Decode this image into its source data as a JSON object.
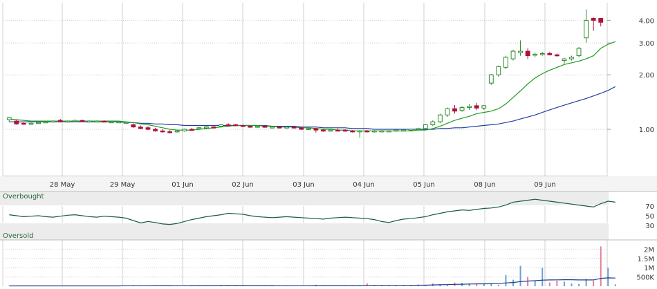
{
  "chart_data": {
    "type": "candlestick",
    "x_labels": [
      "28 May",
      "29 May",
      "01 Jun",
      "02 Jun",
      "03 Jun",
      "04 Jun",
      "05 Jun",
      "08 Jun",
      "09 Jun"
    ],
    "price": {
      "scale": "log",
      "ylim": [
        0.55,
        5.0
      ],
      "y_ticks": [
        {
          "value": 1.0,
          "label": "1.00"
        },
        {
          "value": 2.0,
          "label": "2.00"
        },
        {
          "value": 3.0,
          "label": "3.00"
        },
        {
          "value": 4.0,
          "label": "4.00"
        }
      ],
      "candles": [
        {
          "o": 1.13,
          "h": 1.17,
          "l": 1.1,
          "c": 1.16
        },
        {
          "o": 1.11,
          "h": 1.13,
          "l": 1.06,
          "c": 1.07
        },
        {
          "o": 1.08,
          "h": 1.09,
          "l": 1.06,
          "c": 1.07
        },
        {
          "o": 1.07,
          "h": 1.09,
          "l": 1.06,
          "c": 1.08
        },
        {
          "o": 1.08,
          "h": 1.1,
          "l": 1.07,
          "c": 1.09
        },
        {
          "o": 1.09,
          "h": 1.11,
          "l": 1.08,
          "c": 1.1
        },
        {
          "o": 1.1,
          "h": 1.12,
          "l": 1.09,
          "c": 1.11
        },
        {
          "o": 1.12,
          "h": 1.14,
          "l": 1.09,
          "c": 1.1
        },
        {
          "o": 1.1,
          "h": 1.12,
          "l": 1.09,
          "c": 1.11
        },
        {
          "o": 1.11,
          "h": 1.13,
          "l": 1.1,
          "c": 1.12
        },
        {
          "o": 1.12,
          "h": 1.13,
          "l": 1.1,
          "c": 1.11
        },
        {
          "o": 1.11,
          "h": 1.12,
          "l": 1.1,
          "c": 1.11
        },
        {
          "o": 1.11,
          "h": 1.12,
          "l": 1.1,
          "c": 1.11
        },
        {
          "o": 1.11,
          "h": 1.12,
          "l": 1.1,
          "c": 1.1
        },
        {
          "o": 1.1,
          "h": 1.11,
          "l": 1.09,
          "c": 1.1
        },
        {
          "o": 1.1,
          "h": 1.11,
          "l": 1.09,
          "c": 1.1
        },
        {
          "o": 1.09,
          "h": 1.1,
          "l": 1.08,
          "c": 1.09
        },
        {
          "o": 1.06,
          "h": 1.08,
          "l": 1.02,
          "c": 1.03
        },
        {
          "o": 1.03,
          "h": 1.05,
          "l": 1.0,
          "c": 1.01
        },
        {
          "o": 1.02,
          "h": 1.04,
          "l": 0.99,
          "c": 1.0
        },
        {
          "o": 1.0,
          "h": 1.02,
          "l": 0.97,
          "c": 0.98
        },
        {
          "o": 0.98,
          "h": 1.0,
          "l": 0.96,
          "c": 0.97
        },
        {
          "o": 0.97,
          "h": 0.99,
          "l": 0.95,
          "c": 0.96
        },
        {
          "o": 0.97,
          "h": 0.99,
          "l": 0.96,
          "c": 0.98
        },
        {
          "o": 0.98,
          "h": 1.01,
          "l": 0.97,
          "c": 1.0
        },
        {
          "o": 1.0,
          "h": 1.02,
          "l": 0.98,
          "c": 0.99
        },
        {
          "o": 1.01,
          "h": 1.03,
          "l": 0.99,
          "c": 1.02
        },
        {
          "o": 1.02,
          "h": 1.04,
          "l": 1.0,
          "c": 1.03
        },
        {
          "o": 1.03,
          "h": 1.04,
          "l": 1.01,
          "c": 1.02
        },
        {
          "o": 1.04,
          "h": 1.07,
          "l": 1.03,
          "c": 1.06
        },
        {
          "o": 1.06,
          "h": 1.08,
          "l": 1.04,
          "c": 1.05
        },
        {
          "o": 1.06,
          "h": 1.07,
          "l": 1.04,
          "c": 1.05
        },
        {
          "o": 1.05,
          "h": 1.06,
          "l": 1.03,
          "c": 1.04
        },
        {
          "o": 1.04,
          "h": 1.05,
          "l": 1.02,
          "c": 1.03
        },
        {
          "o": 1.03,
          "h": 1.05,
          "l": 1.02,
          "c": 1.04
        },
        {
          "o": 1.04,
          "h": 1.05,
          "l": 1.02,
          "c": 1.03
        },
        {
          "o": 1.03,
          "h": 1.04,
          "l": 1.02,
          "c": 1.03
        },
        {
          "o": 1.03,
          "h": 1.04,
          "l": 1.01,
          "c": 1.02
        },
        {
          "o": 1.02,
          "h": 1.04,
          "l": 1.01,
          "c": 1.03
        },
        {
          "o": 1.03,
          "h": 1.04,
          "l": 1.01,
          "c": 1.02
        },
        {
          "o": 1.02,
          "h": 1.03,
          "l": 0.99,
          "c": 1.0
        },
        {
          "o": 1.0,
          "h": 1.02,
          "l": 0.99,
          "c": 1.01
        },
        {
          "o": 1.01,
          "h": 1.02,
          "l": 0.96,
          "c": 0.99
        },
        {
          "o": 0.99,
          "h": 1.0,
          "l": 0.97,
          "c": 0.98
        },
        {
          "o": 0.98,
          "h": 1.0,
          "l": 0.97,
          "c": 0.99
        },
        {
          "o": 0.99,
          "h": 1.01,
          "l": 0.98,
          "c": 0.98
        },
        {
          "o": 0.99,
          "h": 1.0,
          "l": 0.97,
          "c": 0.98
        },
        {
          "o": 0.98,
          "h": 0.99,
          "l": 0.96,
          "c": 0.97
        },
        {
          "o": 0.97,
          "h": 0.99,
          "l": 0.9,
          "c": 0.98
        },
        {
          "o": 0.98,
          "h": 0.99,
          "l": 0.96,
          "c": 0.97
        },
        {
          "o": 0.97,
          "h": 0.99,
          "l": 0.96,
          "c": 0.98
        },
        {
          "o": 0.98,
          "h": 0.99,
          "l": 0.97,
          "c": 0.98
        },
        {
          "o": 0.98,
          "h": 0.99,
          "l": 0.97,
          "c": 0.98
        },
        {
          "o": 0.98,
          "h": 1.0,
          "l": 0.97,
          "c": 0.99
        },
        {
          "o": 0.99,
          "h": 1.0,
          "l": 0.98,
          "c": 0.99
        },
        {
          "o": 0.99,
          "h": 1.01,
          "l": 0.98,
          "c": 1.0
        },
        {
          "o": 1.0,
          "h": 1.02,
          "l": 0.99,
          "c": 1.01
        },
        {
          "o": 1.01,
          "h": 1.07,
          "l": 1.0,
          "c": 1.06
        },
        {
          "o": 1.06,
          "h": 1.12,
          "l": 1.04,
          "c": 1.1
        },
        {
          "o": 1.1,
          "h": 1.22,
          "l": 1.08,
          "c": 1.2
        },
        {
          "o": 1.2,
          "h": 1.32,
          "l": 1.17,
          "c": 1.3
        },
        {
          "o": 1.3,
          "h": 1.36,
          "l": 1.22,
          "c": 1.26
        },
        {
          "o": 1.27,
          "h": 1.34,
          "l": 1.25,
          "c": 1.32
        },
        {
          "o": 1.32,
          "h": 1.38,
          "l": 1.28,
          "c": 1.34
        },
        {
          "o": 1.35,
          "h": 1.4,
          "l": 1.28,
          "c": 1.31
        },
        {
          "o": 1.31,
          "h": 1.36,
          "l": 1.28,
          "c": 1.35
        },
        {
          "o": 1.8,
          "h": 2.02,
          "l": 1.76,
          "c": 2.0
        },
        {
          "o": 2.0,
          "h": 2.25,
          "l": 1.95,
          "c": 2.22
        },
        {
          "o": 2.2,
          "h": 2.55,
          "l": 2.15,
          "c": 2.5
        },
        {
          "o": 2.45,
          "h": 2.75,
          "l": 2.4,
          "c": 2.7
        },
        {
          "o": 2.65,
          "h": 3.1,
          "l": 2.55,
          "c": 2.7
        },
        {
          "o": 2.7,
          "h": 2.8,
          "l": 2.45,
          "c": 2.55
        },
        {
          "o": 2.58,
          "h": 2.65,
          "l": 2.5,
          "c": 2.6
        },
        {
          "o": 2.6,
          "h": 2.68,
          "l": 2.55,
          "c": 2.62
        },
        {
          "o": 2.62,
          "h": 2.68,
          "l": 2.56,
          "c": 2.58
        },
        {
          "o": 2.58,
          "h": 2.62,
          "l": 2.52,
          "c": 2.55
        },
        {
          "o": 2.4,
          "h": 2.48,
          "l": 2.3,
          "c": 2.45
        },
        {
          "o": 2.45,
          "h": 2.55,
          "l": 2.4,
          "c": 2.5
        },
        {
          "o": 2.55,
          "h": 2.85,
          "l": 2.5,
          "c": 2.8
        },
        {
          "o": 3.2,
          "h": 4.6,
          "l": 3.0,
          "c": 4.0
        },
        {
          "o": 4.1,
          "h": 4.15,
          "l": 3.5,
          "c": 4.0
        },
        {
          "o": 4.1,
          "h": 4.12,
          "l": 3.7,
          "c": 3.9
        }
      ],
      "ma_short": [
        1.14,
        1.13,
        1.12,
        1.11,
        1.11,
        1.11,
        1.11,
        1.11,
        1.11,
        1.11,
        1.11,
        1.11,
        1.11,
        1.11,
        1.11,
        1.11,
        1.1,
        1.09,
        1.07,
        1.06,
        1.04,
        1.02,
        1.0,
        0.99,
        0.99,
        0.99,
        1.0,
        1.01,
        1.02,
        1.03,
        1.04,
        1.05,
        1.05,
        1.05,
        1.05,
        1.04,
        1.04,
        1.03,
        1.03,
        1.03,
        1.02,
        1.02,
        1.01,
        1.0,
        1.0,
        0.99,
        0.99,
        0.98,
        0.98,
        0.98,
        0.98,
        0.98,
        0.98,
        0.98,
        0.98,
        0.98,
        0.99,
        0.99,
        1.01,
        1.04,
        1.08,
        1.12,
        1.15,
        1.18,
        1.22,
        1.24,
        1.26,
        1.3,
        1.38,
        1.5,
        1.63,
        1.78,
        1.92,
        2.03,
        2.12,
        2.2,
        2.28,
        2.33,
        2.38,
        2.45,
        2.55,
        2.8,
        2.95,
        3.05
      ],
      "ma_long": [
        1.1,
        1.1,
        1.1,
        1.1,
        1.1,
        1.1,
        1.1,
        1.1,
        1.1,
        1.1,
        1.1,
        1.1,
        1.1,
        1.1,
        1.1,
        1.1,
        1.09,
        1.09,
        1.08,
        1.08,
        1.07,
        1.07,
        1.06,
        1.06,
        1.05,
        1.05,
        1.05,
        1.05,
        1.05,
        1.05,
        1.05,
        1.05,
        1.05,
        1.05,
        1.05,
        1.05,
        1.04,
        1.04,
        1.04,
        1.04,
        1.03,
        1.03,
        1.03,
        1.02,
        1.02,
        1.02,
        1.02,
        1.01,
        1.01,
        1.01,
        1.0,
        1.0,
        1.0,
        1.0,
        1.0,
        1.0,
        1.0,
        1.0,
        1.0,
        1.01,
        1.01,
        1.02,
        1.02,
        1.03,
        1.04,
        1.05,
        1.06,
        1.07,
        1.09,
        1.11,
        1.14,
        1.17,
        1.2,
        1.24,
        1.28,
        1.32,
        1.36,
        1.4,
        1.44,
        1.48,
        1.53,
        1.58,
        1.64,
        1.72
      ]
    },
    "oscillator": {
      "band_labels": [
        "Overbought",
        "Oversold"
      ],
      "ylim": [
        0,
        100
      ],
      "y_ticks": [
        {
          "value": 70,
          "label": "70"
        },
        {
          "value": 50,
          "label": "50"
        },
        {
          "value": 30,
          "label": "30"
        }
      ],
      "values": [
        52,
        50,
        48,
        49,
        50,
        48,
        47,
        49,
        51,
        52,
        50,
        48,
        47,
        49,
        48,
        47,
        45,
        40,
        35,
        38,
        36,
        33,
        32,
        34,
        38,
        42,
        45,
        48,
        50,
        52,
        55,
        54,
        53,
        50,
        48,
        47,
        46,
        47,
        48,
        47,
        46,
        45,
        44,
        43,
        45,
        46,
        47,
        46,
        45,
        44,
        42,
        38,
        36,
        40,
        43,
        44,
        46,
        48,
        52,
        55,
        58,
        60,
        62,
        61,
        63,
        65,
        66,
        68,
        72,
        78,
        80,
        82,
        84,
        82,
        80,
        78,
        76,
        74,
        72,
        70,
        68,
        75,
        80,
        78
      ]
    },
    "volume": {
      "ylim": [
        0,
        2500000
      ],
      "y_ticks": [
        {
          "value": 500000,
          "label": "500K"
        },
        {
          "value": 1000000,
          "label": "1M"
        },
        {
          "value": 1500000,
          "label": "1.5M"
        },
        {
          "value": 2000000,
          "label": "2M"
        }
      ],
      "values": [
        20000,
        15000,
        20000,
        10000,
        20000,
        25000,
        15000,
        30000,
        20000,
        25000,
        15000,
        20000,
        10000,
        25000,
        20000,
        15000,
        20000,
        60000,
        40000,
        30000,
        50000,
        40000,
        30000,
        20000,
        40000,
        50000,
        30000,
        40000,
        20000,
        60000,
        40000,
        30000,
        40000,
        20000,
        30000,
        40000,
        30000,
        20000,
        40000,
        30000,
        20000,
        30000,
        80000,
        40000,
        30000,
        20000,
        30000,
        40000,
        30000,
        150000,
        60000,
        40000,
        30000,
        40000,
        50000,
        60000,
        80000,
        60000,
        150000,
        120000,
        100000,
        200000,
        180000,
        150000,
        100000,
        120000,
        150000,
        80000,
        600000,
        350000,
        1100000,
        500000,
        300000,
        1000000,
        200000,
        300000,
        250000,
        150000,
        120000,
        400000,
        300000,
        2150000,
        1000000,
        100000
      ],
      "ma": [
        20000,
        20000,
        20000,
        20000,
        20000,
        20000,
        20000,
        20000,
        20000,
        20000,
        20000,
        20000,
        20000,
        20000,
        20000,
        20000,
        25000,
        30000,
        30000,
        30000,
        35000,
        35000,
        35000,
        30000,
        30000,
        35000,
        35000,
        35000,
        35000,
        40000,
        40000,
        40000,
        40000,
        35000,
        35000,
        35000,
        35000,
        30000,
        30000,
        30000,
        30000,
        30000,
        35000,
        35000,
        35000,
        35000,
        35000,
        35000,
        35000,
        50000,
        50000,
        50000,
        50000,
        50000,
        50000,
        50000,
        55000,
        55000,
        70000,
        80000,
        85000,
        100000,
        110000,
        120000,
        125000,
        130000,
        135000,
        140000,
        180000,
        200000,
        250000,
        280000,
        300000,
        330000,
        340000,
        345000,
        350000,
        350000,
        340000,
        340000,
        340000,
        420000,
        450000,
        440000
      ]
    }
  },
  "colors": {
    "up": "#2a8a2a",
    "down": "#b0103a",
    "ma_short": "#1f9a1f",
    "ma_long": "#1f3f9f",
    "oscillator_line": "#1a5a44",
    "volume_bar": "#6f9fd3",
    "volume_bar_down": "#e07f9a",
    "grid": "#cfcfcf",
    "band_fill": "#ececec",
    "band_text": "#2c6b3f"
  }
}
